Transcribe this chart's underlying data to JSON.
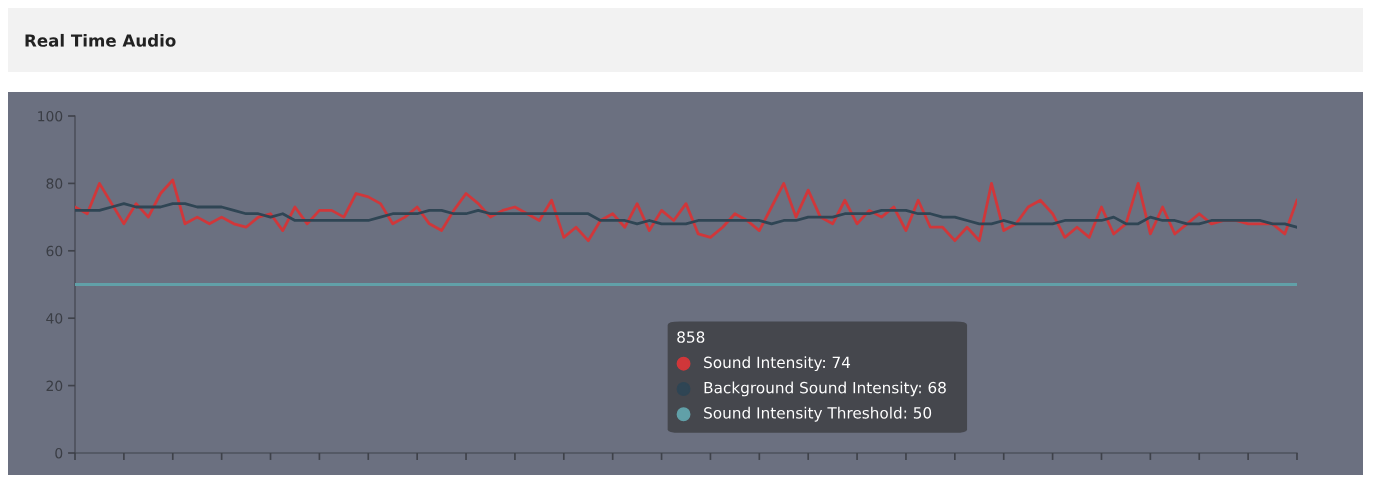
{
  "chart_data": {
    "type": "line",
    "title": "Real Time Audio",
    "categories": [
      null,
      null,
      null,
      null,
      null,
      null,
      null,
      null,
      null,
      null,
      null,
      null,
      null,
      null,
      null,
      null,
      null,
      null,
      null,
      null,
      null,
      null,
      null,
      null,
      null,
      null,
      null,
      null,
      null,
      null,
      null,
      null,
      null,
      null,
      null,
      null,
      null,
      null,
      null,
      null,
      null,
      null,
      null,
      null,
      null,
      null,
      null,
      null,
      null,
      null,
      null,
      null,
      null,
      null,
      null,
      null,
      null,
      null,
      null,
      null,
      null,
      null,
      null,
      null,
      null,
      null,
      null,
      null,
      null,
      null,
      null,
      null,
      null,
      null,
      null,
      null,
      null,
      null,
      null,
      null,
      null,
      null,
      null,
      null,
      null,
      null,
      null,
      null,
      null,
      null,
      null,
      null,
      null,
      null,
      null,
      null,
      null,
      null,
      null,
      null,
      null
    ],
    "series": [
      {
        "color": "#d0373a",
        "values": [
          73,
          71,
          80,
          74,
          68,
          74,
          70,
          77,
          81,
          68,
          70,
          68,
          70,
          68,
          67,
          70,
          71,
          66,
          73,
          68,
          72,
          72,
          70,
          77,
          76,
          74,
          68,
          70,
          73,
          68,
          66,
          72,
          77,
          74,
          70,
          72,
          73,
          71,
          69,
          75,
          64,
          67,
          63,
          69,
          71,
          67,
          74,
          66,
          72,
          69,
          74,
          65,
          64,
          67,
          71,
          69,
          66,
          73,
          80,
          70,
          78,
          70,
          68,
          75,
          68,
          72,
          70,
          73,
          66,
          75,
          67,
          67,
          63,
          67,
          63,
          80,
          66,
          68,
          73,
          75,
          71,
          64,
          67,
          64,
          73,
          65,
          68,
          80,
          65,
          73,
          65,
          68,
          71,
          68,
          69,
          69,
          68,
          68,
          68,
          65,
          75
        ]
      },
      {
        "color": "#2f4554",
        "values": [
          72,
          72,
          72,
          73,
          74,
          73,
          73,
          73,
          74,
          74,
          73,
          73,
          73,
          72,
          71,
          71,
          70,
          71,
          69,
          69,
          69,
          69,
          69,
          69,
          69,
          70,
          71,
          71,
          71,
          72,
          72,
          71,
          71,
          72,
          71,
          71,
          71,
          71,
          71,
          71,
          71,
          71,
          71,
          69,
          69,
          69,
          68,
          69,
          68,
          68,
          68,
          69,
          69,
          69,
          69,
          69,
          69,
          68,
          69,
          69,
          70,
          70,
          70,
          71,
          71,
          71,
          72,
          72,
          72,
          71,
          71,
          70,
          70,
          69,
          68,
          68,
          69,
          68,
          68,
          68,
          68,
          69,
          69,
          69,
          69,
          70,
          68,
          68,
          70,
          69,
          69,
          68,
          68,
          69,
          69,
          69,
          69,
          69,
          68,
          68,
          67
        ]
      },
      {
        "color": "#61a0a8",
        "values": [
          50,
          50,
          50,
          50,
          50,
          50,
          50,
          50,
          50,
          50,
          50,
          50,
          50,
          50,
          50,
          50,
          50,
          50,
          50,
          50,
          50,
          50,
          50,
          50,
          50,
          50,
          50,
          50,
          50,
          50,
          50,
          50,
          50,
          50,
          50,
          50,
          50,
          50,
          50,
          50,
          50,
          50,
          50,
          50,
          50,
          50,
          50,
          50,
          50,
          50,
          50,
          50,
          50,
          50,
          50,
          50,
          50,
          50,
          50,
          50,
          50,
          50,
          50,
          50,
          50,
          50,
          50,
          50,
          50,
          50,
          50,
          50,
          50,
          50,
          50,
          50,
          50,
          50,
          50,
          50,
          50,
          50,
          50,
          50,
          50,
          50,
          50,
          50,
          50,
          50,
          50,
          50,
          50,
          50,
          50,
          50,
          50,
          50,
          50,
          50,
          50
        ]
      }
    ],
    "ylim": [
      0,
      100
    ],
    "yticks": [
      0,
      20,
      40,
      60,
      80,
      100
    ],
    "annotations": [
      "858",
      "Sound Intensity: 74",
      "Background Sound Intensity: 68",
      "Sound Intensity Threshold: 50"
    ],
    "grid": false,
    "marker": "none",
    "line_style": "solid"
  }
}
